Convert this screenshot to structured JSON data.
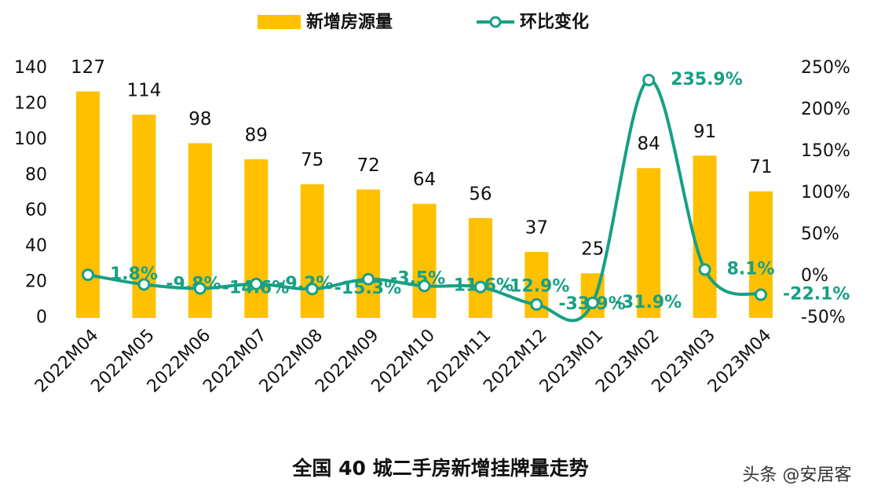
{
  "chart_data": {
    "type": "bar-line",
    "title": "全国 40 城二手房新增挂牌量走势",
    "watermark": "头条 @安居客",
    "categories": [
      "2022M04",
      "2022M05",
      "2022M06",
      "2022M07",
      "2022M08",
      "2022M09",
      "2022M10",
      "2022M11",
      "2022M12",
      "2023M01",
      "2023M02",
      "2023M03",
      "2023M04"
    ],
    "series": [
      {
        "name": "新增房源量",
        "type": "bar",
        "color": "#FFC000",
        "values": [
          127,
          114,
          98,
          89,
          75,
          72,
          64,
          56,
          37,
          25,
          84,
          91,
          71
        ]
      },
      {
        "name": "环比变化",
        "type": "line",
        "axis": "y2",
        "color": "#16A085",
        "values": [
          1.8,
          -9.8,
          -14.6,
          -9.2,
          -15.3,
          -3.5,
          -11.6,
          -12.9,
          -33.9,
          -31.9,
          235.9,
          8.1,
          -22.1
        ],
        "value_labels": [
          "1.8%",
          "-9.8%",
          "-14.6%",
          "-9.2%",
          "-15.3%",
          "-3.5%",
          "-11.6%",
          "-12.9%",
          "-33.9%",
          "-31.9%",
          "235.9%",
          "8.1%",
          "-22.1%"
        ]
      }
    ],
    "ylim": [
      0,
      140
    ],
    "yticks": [
      0,
      20,
      40,
      60,
      80,
      100,
      120,
      140
    ],
    "y2lim": [
      -50,
      250
    ],
    "y2ticks": [
      {
        "value": -50,
        "label": "-50%"
      },
      {
        "value": 0,
        "label": "0%"
      },
      {
        "value": 50,
        "label": "50%"
      },
      {
        "value": 100,
        "label": "100%"
      },
      {
        "value": 150,
        "label": "150%"
      },
      {
        "value": 200,
        "label": "200%"
      },
      {
        "value": 250,
        "label": "250%"
      }
    ],
    "legend": "top",
    "grid": false
  }
}
